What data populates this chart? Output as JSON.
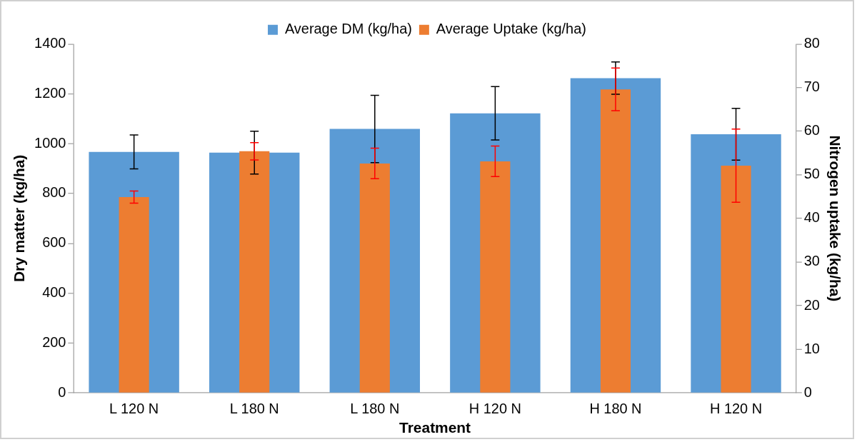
{
  "chart_data": {
    "type": "bar",
    "xlabel": "Treatment",
    "ylabel": "Dry matter (kg/ha)",
    "y2label": "Nitrogen uptake (kg/ha)",
    "categories": [
      "L 120 N",
      "L 180 N",
      "L 180 N",
      "H 120 N",
      "H 180 N",
      "H 120 N"
    ],
    "series": [
      {
        "name": "Average DM (kg/ha)",
        "color": "#5b9bd5",
        "values": [
          967,
          964,
          1059,
          1122,
          1263,
          1038
        ],
        "errors": [
          68,
          86,
          135,
          107,
          65,
          104
        ]
      },
      {
        "name": "Average Uptake (kg/ha)",
        "color": "#ed7d31",
        "axis": "y2",
        "values": [
          44.9,
          55.4,
          52.6,
          53.1,
          69.6,
          52.1
        ],
        "errors": [
          1.4,
          2,
          3.5,
          3.5,
          4.9,
          8.4
        ]
      }
    ],
    "ylim": [
      0,
      1400
    ],
    "yticks": [
      0,
      200,
      400,
      600,
      800,
      1000,
      1200,
      1400
    ],
    "y2lim": [
      0,
      80
    ],
    "y2ticks": [
      0,
      10,
      20,
      30,
      40,
      50,
      60,
      70,
      80
    ],
    "grid": false,
    "legend": "top"
  }
}
